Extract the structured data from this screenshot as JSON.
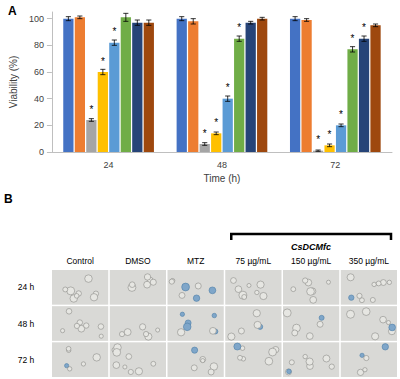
{
  "chart_data": {
    "type": "bar",
    "panel_label": "A",
    "x_label": "Time (h)",
    "y_label": "Viability (%)",
    "categories": [
      "24",
      "48",
      "72"
    ],
    "ylim": [
      0,
      105
    ],
    "yticks": [
      0,
      20,
      40,
      60,
      80,
      100
    ],
    "grid": false,
    "series": [
      {
        "color": "#4472c4",
        "values": [
          100,
          100,
          100
        ],
        "errors": [
          1.5,
          1.5,
          1.5
        ],
        "annotations": [
          null,
          null,
          null
        ]
      },
      {
        "color": "#ed7d31",
        "values": [
          101,
          98,
          99
        ],
        "errors": [
          1,
          2,
          1
        ],
        "annotations": [
          null,
          null,
          null
        ]
      },
      {
        "color": "#a5a5a5",
        "values": [
          24,
          6,
          1
        ],
        "errors": [
          1,
          1,
          0.5
        ],
        "annotations": [
          "*",
          "*",
          "*"
        ]
      },
      {
        "color": "#ffc000",
        "values": [
          60,
          14,
          5
        ],
        "errors": [
          2,
          1,
          1
        ],
        "annotations": [
          "*",
          "*",
          "*"
        ]
      },
      {
        "color": "#5b9bd5",
        "values": [
          82,
          40,
          20
        ],
        "errors": [
          2,
          2,
          1
        ],
        "annotations": [
          "*",
          "*",
          "*"
        ]
      },
      {
        "color": "#70ad47",
        "values": [
          101,
          85,
          77
        ],
        "errors": [
          3,
          2,
          2
        ],
        "annotations": [
          null,
          "*",
          "*"
        ]
      },
      {
        "color": "#264478",
        "values": [
          97,
          97,
          85
        ],
        "errors": [
          2,
          1,
          2
        ],
        "annotations": [
          null,
          null,
          "*"
        ]
      },
      {
        "color": "#9e480e",
        "values": [
          97,
          100,
          95
        ],
        "errors": [
          2,
          1,
          1
        ],
        "annotations": [
          null,
          null,
          null
        ]
      }
    ]
  },
  "panel_b": {
    "label": "B",
    "columns": [
      {
        "label": "Control"
      },
      {
        "label": "DMSO"
      },
      {
        "label": "MTZ"
      },
      {
        "label": "75 µg/mL",
        "group": "CsDCMfc"
      },
      {
        "label": "150 µg/mL",
        "group": "CsDCMfc"
      },
      {
        "label": "350 µg/mL",
        "group": "CsDCMfc"
      }
    ],
    "rows": [
      "24 h",
      "48 h",
      "72 h"
    ]
  }
}
